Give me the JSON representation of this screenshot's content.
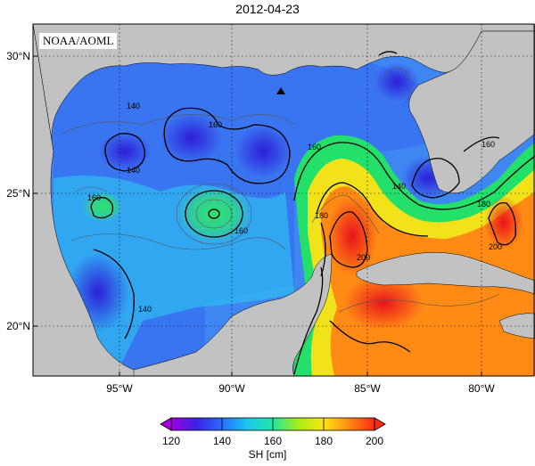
{
  "title": "2012-04-23",
  "credit": "NOAA/AOML",
  "lat_labels": [
    "30°N",
    "25°N",
    "20°N"
  ],
  "lon_labels": [
    "95°W",
    "90°W",
    "85°W",
    "80°W"
  ],
  "contour_labels": [
    "140",
    "160",
    "140",
    "160",
    "160",
    "140",
    "160",
    "180",
    "200",
    "160",
    "180",
    "200",
    "140"
  ],
  "colorbar": {
    "ticks": [
      "120",
      "140",
      "160",
      "180",
      "200"
    ],
    "label": "SH [cm]",
    "colors": [
      "#a000e0",
      "#3a22e6",
      "#2a8cff",
      "#19d9ee",
      "#28e77a",
      "#b6ee19",
      "#ffe413",
      "#ff9a12",
      "#ff3a12"
    ]
  },
  "colors": {
    "land": "#c2c2c2",
    "grid": "#000000"
  }
}
